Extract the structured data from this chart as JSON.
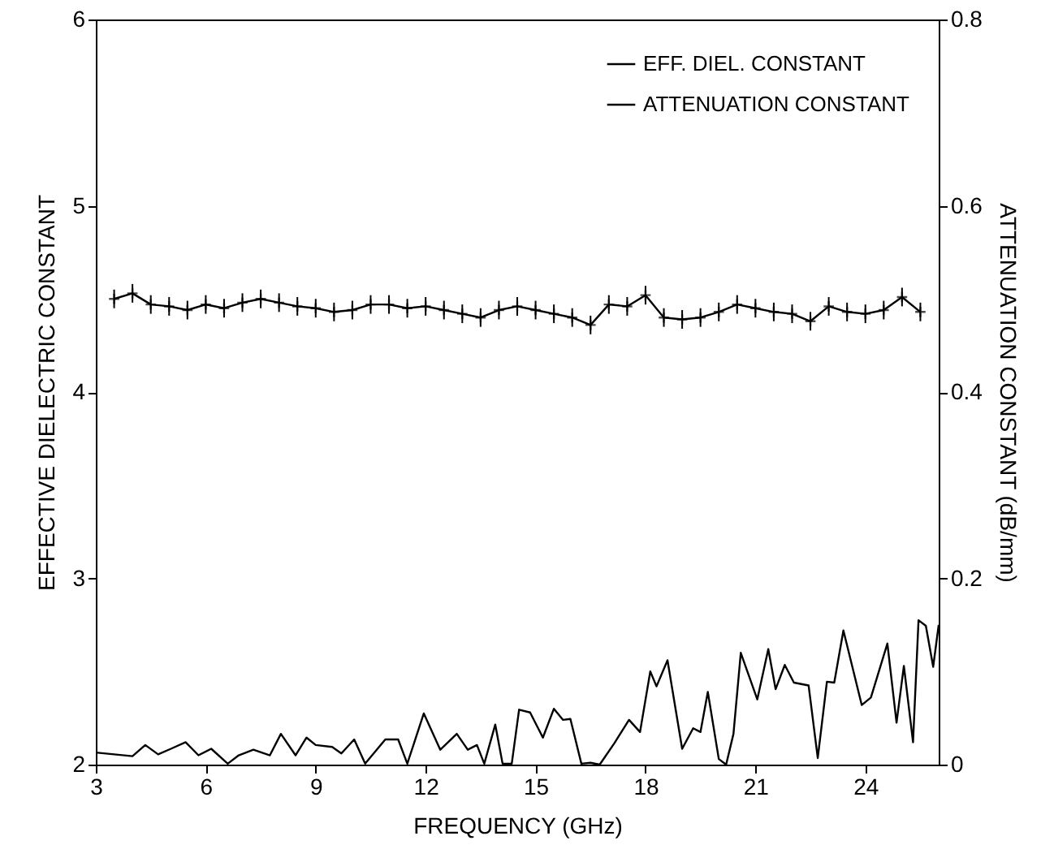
{
  "chart_data": {
    "type": "line",
    "xlabel": "FREQUENCY (GHz)",
    "ylabel": "EFFECTIVE DIELECTRIC CONSTANT",
    "y2label": "ATTENUATION CONSTANT (dB/mm)",
    "xlim": [
      3,
      26
    ],
    "xticks": [
      3,
      6,
      9,
      12,
      15,
      18,
      21,
      24
    ],
    "ylim": [
      2,
      6
    ],
    "yticks": [
      2,
      3,
      4,
      5,
      6
    ],
    "y2lim": [
      0,
      0.8
    ],
    "y2ticks": [
      0,
      0.2,
      0.4,
      0.6,
      0.8
    ],
    "legend": "top right",
    "series": [
      {
        "name": "EFF. DIEL. CONSTANT",
        "color": "#000000",
        "marker": "cross",
        "x": [
          3.5,
          4,
          4.5,
          5,
          5.5,
          6,
          6.5,
          7,
          7.5,
          8,
          8.5,
          9,
          9.5,
          10,
          10.5,
          11,
          11.5,
          12,
          12.5,
          13,
          13.5,
          14,
          14.5,
          15,
          15.5,
          16,
          16.5,
          17,
          17.5,
          18,
          18.5,
          19,
          19.5,
          20,
          20.5,
          21,
          21.5,
          22,
          22.5,
          23,
          23.5,
          24,
          24.5,
          25,
          25.5
        ],
        "values": [
          4.5,
          4.53,
          4.47,
          4.46,
          4.44,
          4.47,
          4.45,
          4.48,
          4.5,
          4.48,
          4.46,
          4.45,
          4.43,
          4.44,
          4.47,
          4.47,
          4.45,
          4.46,
          4.44,
          4.42,
          4.4,
          4.44,
          4.46,
          4.44,
          4.42,
          4.4,
          4.36,
          4.47,
          4.46,
          4.52,
          4.4,
          4.39,
          4.4,
          4.43,
          4.47,
          4.45,
          4.43,
          4.42,
          4.38,
          4.46,
          4.43,
          4.42,
          4.44,
          4.51,
          4.43
        ],
        "errors": [
          0.05,
          0.05,
          0.05,
          0.05,
          0.05,
          0.05,
          0.05,
          0.05,
          0.05,
          0.05,
          0.05,
          0.05,
          0.05,
          0.05,
          0.05,
          0.05,
          0.05,
          0.05,
          0.05,
          0.05,
          0.05,
          0.05,
          0.05,
          0.05,
          0.05,
          0.05,
          0.05,
          0.05,
          0.05,
          0.05,
          0.05,
          0.05,
          0.05,
          0.05,
          0.05,
          0.05,
          0.05,
          0.05,
          0.05,
          0.05,
          0.05,
          0.05,
          0.05,
          0.05,
          0.05
        ]
      },
      {
        "name": "ATTENUATION CONSTANT",
        "color": "#000000",
        "axis": "y2",
        "x": [
          3,
          3.5,
          4,
          4.35,
          4.7,
          5.05,
          5.45,
          5.8,
          6.15,
          6.6,
          6.9,
          7.3,
          7.75,
          8.05,
          8.45,
          8.75,
          9,
          9.45,
          9.7,
          10.05,
          10.35,
          10.9,
          11.25,
          11.5,
          11.95,
          12.4,
          12.85,
          13.15,
          13.4,
          13.6,
          13.9,
          14.1,
          14.35,
          14.55,
          14.85,
          15.2,
          15.5,
          15.75,
          15.95,
          16.25,
          16.5,
          16.75,
          17.15,
          17.55,
          17.85,
          18.13,
          18.3,
          18.6,
          19,
          19.3,
          19.5,
          19.7,
          20,
          20.2,
          20.4,
          20.6,
          21.05,
          21.35,
          21.55,
          21.8,
          22.05,
          22.45,
          22.7,
          22.95,
          23.15,
          23.4,
          23.9,
          24.15,
          24.6,
          24.85,
          25.05,
          25.3,
          25.45,
          25.65,
          25.85,
          26
        ],
        "values": [
          0.013,
          0.011,
          0.009,
          0.021,
          0.011,
          0.017,
          0.024,
          0.01,
          0.017,
          0.001,
          0.01,
          0.016,
          0.01,
          0.033,
          0.01,
          0.029,
          0.021,
          0.019,
          0.012,
          0.027,
          0.001,
          0.027,
          0.027,
          0.001,
          0.055,
          0.016,
          0.033,
          0.016,
          0.021,
          0.001,
          0.043,
          0.001,
          0.001,
          0.059,
          0.056,
          0.029,
          0.06,
          0.048,
          0.049,
          0.001,
          0.002,
          0,
          0.023,
          0.048,
          0.035,
          0.1,
          0.084,
          0.112,
          0.017,
          0.039,
          0.035,
          0.078,
          0.006,
          0,
          0.033,
          0.12,
          0.07,
          0.124,
          0.081,
          0.107,
          0.088,
          0.085,
          0.007,
          0.089,
          0.088,
          0.144,
          0.064,
          0.072,
          0.13,
          0.045,
          0.106,
          0.024,
          0.155,
          0.149,
          0.105,
          0.15
        ]
      }
    ]
  }
}
